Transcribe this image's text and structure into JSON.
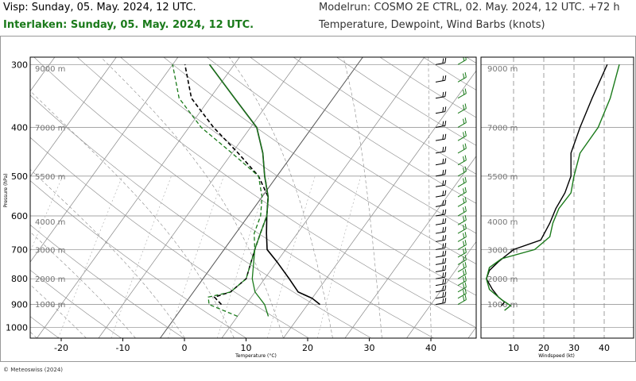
{
  "header": {
    "station_line": "Visp: Sunday, 05. May. 2024, 12 UTC.",
    "station2_line": "Interlaken: Sunday, 05. May. 2024, 12 UTC.",
    "model_line": "Modelrun: COSMO 2E CTRL, 02. May. 2024, 12 UTC. +72 h",
    "variables_line": "Temperature, Dewpoint, Wind Barbs (knots)"
  },
  "credit": "© Meteoswiss (2024)",
  "colors": {
    "station1": "#000000",
    "station2": "#1a7a1a",
    "grid": "#888888"
  },
  "chart_data": [
    {
      "type": "line",
      "subtype": "skew-t",
      "xlabel": "Temperature (°C)",
      "ylabel": "Pressure (hPa)",
      "x_ticks": [
        -20,
        -10,
        0,
        10,
        20,
        30,
        40
      ],
      "y_ticks": [
        300,
        400,
        500,
        600,
        700,
        800,
        900,
        1000
      ],
      "xlim": [
        -25,
        45
      ],
      "ylim": [
        1050,
        290
      ],
      "y_scale": "log",
      "height_labels": [
        {
          "p": 305,
          "label": "9000 m"
        },
        {
          "p": 400,
          "label": "7000 m"
        },
        {
          "p": 500,
          "label": "5500 m"
        },
        {
          "p": 615,
          "label": "4000 m"
        },
        {
          "p": 700,
          "label": "3000 m"
        },
        {
          "p": 800,
          "label": "2000 m"
        },
        {
          "p": 898,
          "label": "1000 m"
        }
      ],
      "series": [
        {
          "name": "Visp temperature",
          "color": "#000000",
          "dash": "none",
          "points": [
            [
              22,
              900
            ],
            [
              20,
              875
            ],
            [
              17,
              850
            ],
            [
              14,
              800
            ],
            [
              10,
              740
            ],
            [
              7,
              700
            ],
            [
              5,
              650
            ],
            [
              3,
              600
            ],
            [
              1,
              550
            ],
            [
              -2,
              500
            ],
            [
              -5,
              450
            ],
            [
              -9,
              400
            ],
            [
              -16,
              350
            ],
            [
              -24,
              300
            ]
          ]
        },
        {
          "name": "Visp dewpoint",
          "color": "#000000",
          "dash": "5,3",
          "points": [
            [
              6,
              900
            ],
            [
              4,
              870
            ],
            [
              6,
              850
            ],
            [
              7,
              800
            ],
            [
              5,
              700
            ],
            [
              4,
              650
            ],
            [
              3,
              600
            ],
            [
              1,
              550
            ],
            [
              -3,
              500
            ],
            [
              -9,
              450
            ],
            [
              -16,
              400
            ],
            [
              -23,
              350
            ],
            [
              -28,
              300
            ]
          ]
        },
        {
          "name": "Interlaken temperature",
          "color": "#1a7a1a",
          "dash": "none",
          "points": [
            [
              15,
              950
            ],
            [
              13,
              900
            ],
            [
              10,
              850
            ],
            [
              8,
              800
            ],
            [
              5,
              700
            ],
            [
              4,
              650
            ],
            [
              3,
              600
            ],
            [
              1,
              550
            ],
            [
              -2,
              500
            ],
            [
              -5,
              450
            ],
            [
              -9,
              400
            ],
            [
              -16,
              350
            ],
            [
              -24,
              300
            ]
          ]
        },
        {
          "name": "Interlaken dewpoint",
          "color": "#1a7a1a",
          "dash": "5,3",
          "points": [
            [
              10,
              950
            ],
            [
              4,
              900
            ],
            [
              3,
              870
            ],
            [
              6,
              850
            ],
            [
              7,
              800
            ],
            [
              5,
              700
            ],
            [
              3,
              650
            ],
            [
              2,
              600
            ],
            [
              0,
              550
            ],
            [
              -3,
              500
            ],
            [
              -10,
              450
            ],
            [
              -18,
              400
            ],
            [
              -25,
              350
            ],
            [
              -30,
              300
            ]
          ]
        }
      ]
    },
    {
      "type": "line",
      "xlabel": "Windspeed (kt)",
      "x_ticks": [
        10,
        20,
        30,
        40
      ],
      "xlim": [
        0,
        50
      ],
      "ylim": [
        1050,
        290
      ],
      "y_scale": "log",
      "height_labels": [
        "9000 m",
        "7000 m",
        "5500 m",
        "4000 m",
        "3000 m",
        "2000 m",
        "1000 m"
      ],
      "series": [
        {
          "name": "Visp windspeed",
          "color": "#000000",
          "points": [
            [
              6,
              905
            ],
            [
              7,
              890
            ],
            [
              5,
              870
            ],
            [
              3,
              840
            ],
            [
              1,
              800
            ],
            [
              2,
              770
            ],
            [
              5,
              740
            ],
            [
              10,
              700
            ],
            [
              19,
              670
            ],
            [
              22,
              620
            ],
            [
              24,
              580
            ],
            [
              27,
              540
            ],
            [
              29,
              500
            ],
            [
              29,
              450
            ],
            [
              32,
              400
            ],
            [
              36,
              350
            ],
            [
              41,
              300
            ]
          ]
        },
        {
          "name": "Interlaken windspeed",
          "color": "#1a7a1a",
          "points": [
            [
              7,
              925
            ],
            [
              9,
              905
            ],
            [
              6,
              880
            ],
            [
              2,
              840
            ],
            [
              1,
              800
            ],
            [
              2,
              760
            ],
            [
              6,
              730
            ],
            [
              17,
              700
            ],
            [
              22,
              660
            ],
            [
              23,
              620
            ],
            [
              25,
              580
            ],
            [
              29,
              540
            ],
            [
              30,
              500
            ],
            [
              32,
              450
            ],
            [
              38,
              400
            ],
            [
              42,
              350
            ],
            [
              45,
              300
            ]
          ]
        }
      ]
    }
  ]
}
